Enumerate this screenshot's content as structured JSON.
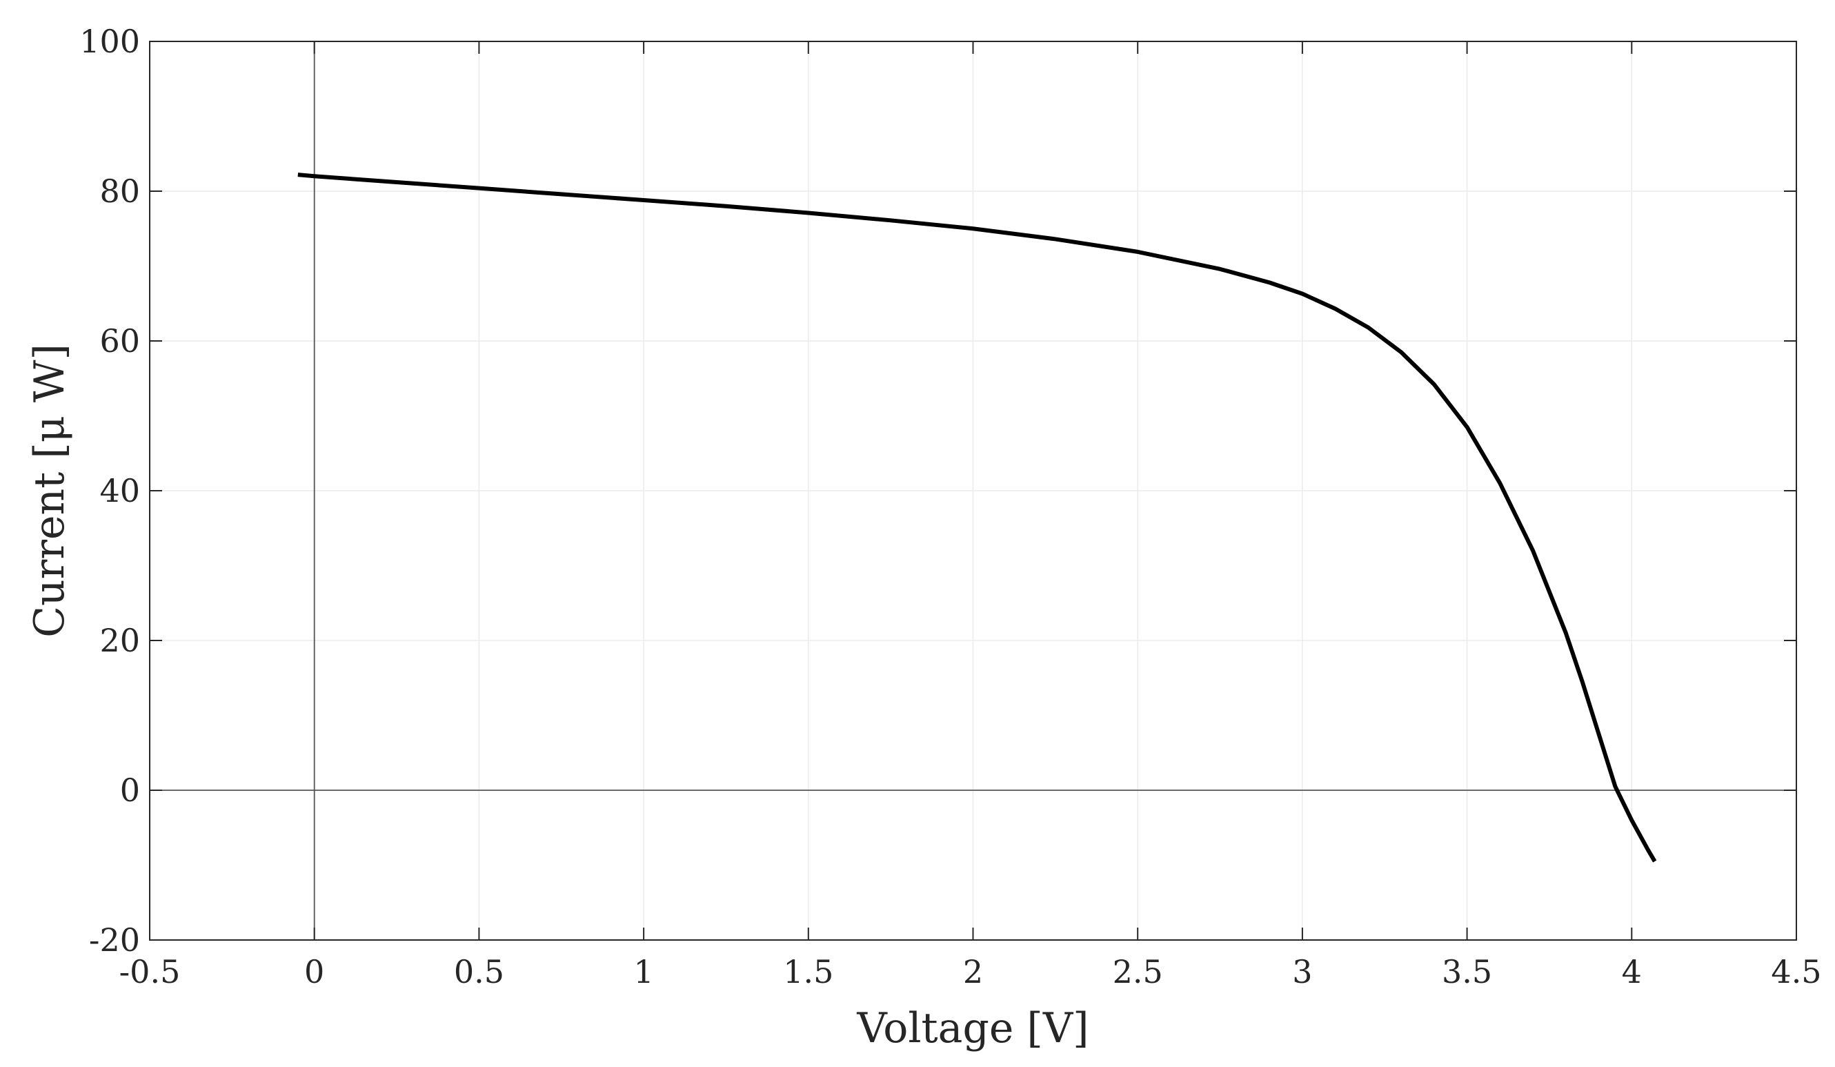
{
  "chart_data": {
    "type": "line",
    "title": "",
    "xlabel": "Voltage [V]",
    "ylabel": "Current [μ W]",
    "xlim": [
      -0.5,
      4.5
    ],
    "ylim": [
      -20,
      100
    ],
    "xticks": [
      -0.5,
      0,
      0.5,
      1,
      1.5,
      2,
      2.5,
      3,
      3.5,
      4,
      4.5
    ],
    "xtick_labels": [
      "-0.5",
      "0",
      "0.5",
      "1",
      "1.5",
      "2",
      "2.5",
      "3",
      "3.5",
      "4",
      "4.5"
    ],
    "yticks": [
      -20,
      0,
      20,
      40,
      60,
      80,
      100
    ],
    "ytick_labels": [
      "-20",
      "0",
      "20",
      "40",
      "60",
      "80",
      "100"
    ],
    "grid": true,
    "zero_lines": true,
    "line_color": "#000000",
    "series": [
      {
        "x": [
          -0.05,
          0,
          0.25,
          0.5,
          0.75,
          1.0,
          1.25,
          1.5,
          1.75,
          2.0,
          2.25,
          2.5,
          2.75,
          2.9,
          3.0,
          3.1,
          3.2,
          3.3,
          3.4,
          3.5,
          3.6,
          3.7,
          3.8,
          3.85,
          3.9,
          3.95,
          4.0,
          4.05,
          4.07
        ],
        "y": [
          82.2,
          82.0,
          81.2,
          80.4,
          79.6,
          78.8,
          78.0,
          77.1,
          76.1,
          75.0,
          73.6,
          71.9,
          69.6,
          67.8,
          66.3,
          64.3,
          61.8,
          58.5,
          54.2,
          48.5,
          41.0,
          32.0,
          21.0,
          14.5,
          7.5,
          0.5,
          -4.0,
          -8.0,
          -9.5
        ]
      }
    ]
  }
}
